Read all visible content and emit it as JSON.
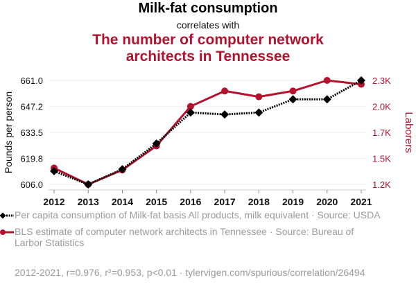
{
  "header": {
    "title": "Milk-fat consumption",
    "subtitle": "correlates with",
    "title2_line1": "The number of computer network",
    "title2_line2": "architects in Tennessee"
  },
  "chart_data": {
    "type": "line",
    "title": "Milk-fat consumption correlates with The number of computer network architects in Tennessee",
    "x": [
      "2012",
      "2013",
      "2014",
      "2015",
      "2016",
      "2017",
      "2018",
      "2019",
      "2020",
      "2021"
    ],
    "y_left": {
      "label": "Pounds per person",
      "ticks": [
        "661.0",
        "647.2",
        "633.5",
        "619.8",
        "606.0"
      ],
      "range": [
        606.0,
        661.0
      ]
    },
    "y_right": {
      "label": "Laborers",
      "ticks": [
        "2.3K",
        "2.0K",
        "1.7K",
        "1.5K",
        "1.2K"
      ],
      "range": [
        1200,
        2280
      ]
    },
    "series": [
      {
        "name": "Per capita consumption of Milk-fat basis All products, milk equivalent · Source: USDA",
        "axis": "left",
        "color": "#000000",
        "style": "dotted",
        "marker": "diamond",
        "values": [
          613.0,
          606.0,
          614.0,
          627.6,
          644.0,
          643.0,
          644.0,
          651.0,
          651.0,
          661.0
        ]
      },
      {
        "name": "BLS estimate of computer network architects in Tennessee · Source: Bureau of Larbor Statistics",
        "axis": "right",
        "color": "#b5122e",
        "style": "solid",
        "marker": "circle",
        "values": [
          1370,
          1200,
          1350,
          1600,
          2010,
          2170,
          2110,
          2170,
          2280,
          2240
        ]
      }
    ],
    "grid": true,
    "legend_position": "bottom"
  },
  "legend": {
    "item1": "Per capita consumption of Milk-fat basis All products, milk equivalent · Source: USDA",
    "item2": "BLS estimate of computer network architects in Tennessee · Source: Bureau of Larbor Statistics"
  },
  "footer": "2012-2021, r=0.976, r²=0.953, p<0.01 · tylervigen.com/spurious/correlation/26494"
}
